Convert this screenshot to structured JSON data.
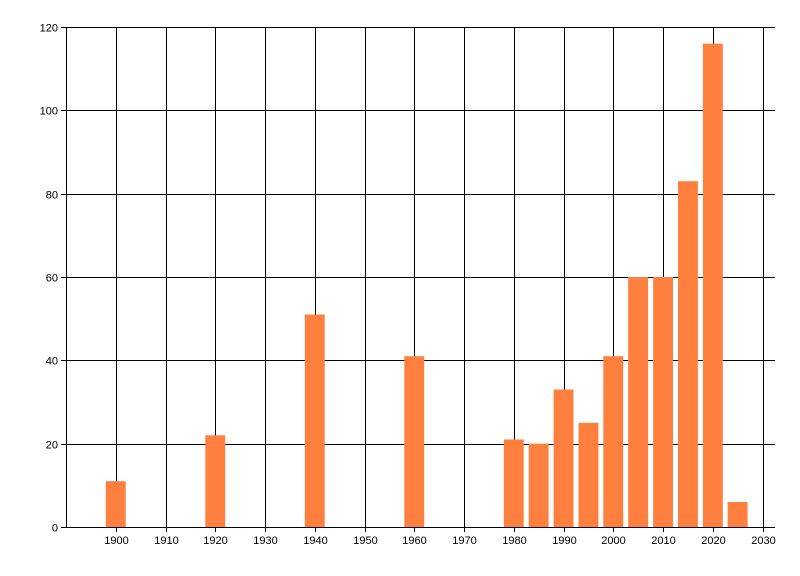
{
  "chart_data": {
    "type": "bar",
    "title": "",
    "xlabel": "",
    "ylabel": "",
    "x": [
      1900,
      1920,
      1940,
      1960,
      1980,
      1985,
      1990,
      1995,
      2000,
      2005,
      2010,
      2015,
      2020,
      2025
    ],
    "values": [
      11,
      22,
      51,
      41,
      21,
      20,
      33,
      25,
      41,
      60,
      60,
      83,
      116,
      6
    ],
    "xlim": [
      1890,
      2032.5
    ],
    "ylim": [
      0,
      120
    ],
    "bar_width_years": 4,
    "x_ticks": [
      "1900",
      "1910",
      "1920",
      "1930",
      "1940",
      "1950",
      "1960",
      "1970",
      "1980",
      "1990",
      "2000",
      "2010",
      "2020",
      "2030"
    ],
    "y_ticks": [
      "0",
      "20",
      "40",
      "60",
      "80",
      "100",
      "120"
    ],
    "grid": true,
    "legend": "none",
    "bar_color": "#FF7F3F",
    "grid_color": "#000000"
  }
}
